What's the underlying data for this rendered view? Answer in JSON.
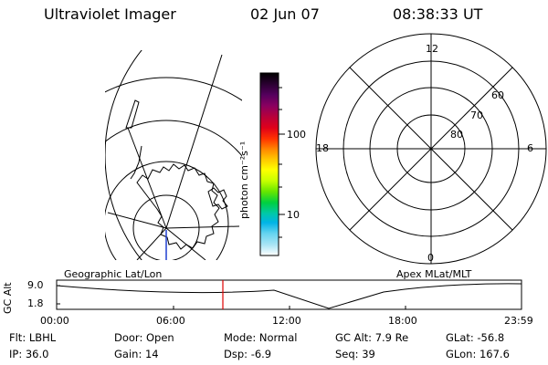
{
  "header": {
    "title": "Ultraviolet Imager",
    "date": "02 Jun 07",
    "time": "08:38:33 UT"
  },
  "colorbar": {
    "unit_label": "photon cm⁻²s⁻¹",
    "ticks": [
      "100",
      "10"
    ],
    "colors": [
      "#000000",
      "#2a0030",
      "#55005e",
      "#8a0060",
      "#b8003a",
      "#e0001a",
      "#ff3300",
      "#ff8a00",
      "#ffc400",
      "#ffff00",
      "#c8ff00",
      "#66e600",
      "#00d040",
      "#00c8a8",
      "#00b4e6",
      "#66d4f0",
      "#a8e4f5",
      "#d8f0f8",
      "#ffffff"
    ]
  },
  "polar_plot": {
    "labels": {
      "top": "12",
      "left": "18",
      "right": "6",
      "bottom": "0"
    },
    "lat_labels": [
      "60",
      "70",
      "80"
    ]
  },
  "timeline": {
    "left_title": "Geographic Lat/Lon",
    "right_title": "Apex MLat/MLT",
    "y_axis_label": "GC Alt",
    "y_ticks": [
      "9.0",
      "1.8"
    ],
    "x_ticks": [
      "00:00",
      "06:00",
      "12:00",
      "18:00",
      "23:59"
    ],
    "marker_color": "#e00000"
  },
  "info": {
    "row1": [
      {
        "label": "Flt:",
        "value": "LBHL"
      },
      {
        "label": "Door:",
        "value": "Open"
      },
      {
        "label": "Mode:",
        "value": "Normal"
      },
      {
        "label": "GC Alt:",
        "value": "7.9 Re"
      },
      {
        "label": "GLat:",
        "value": "-56.8"
      }
    ],
    "row2": [
      {
        "label": "IP:",
        "value": "36.0"
      },
      {
        "label": "Gain:",
        "value": "14"
      },
      {
        "label": "Dsp:",
        "value": "-6.9"
      },
      {
        "label": "Seq:",
        "value": "39"
      },
      {
        "label": "GLon:",
        "value": "167.6"
      }
    ]
  }
}
